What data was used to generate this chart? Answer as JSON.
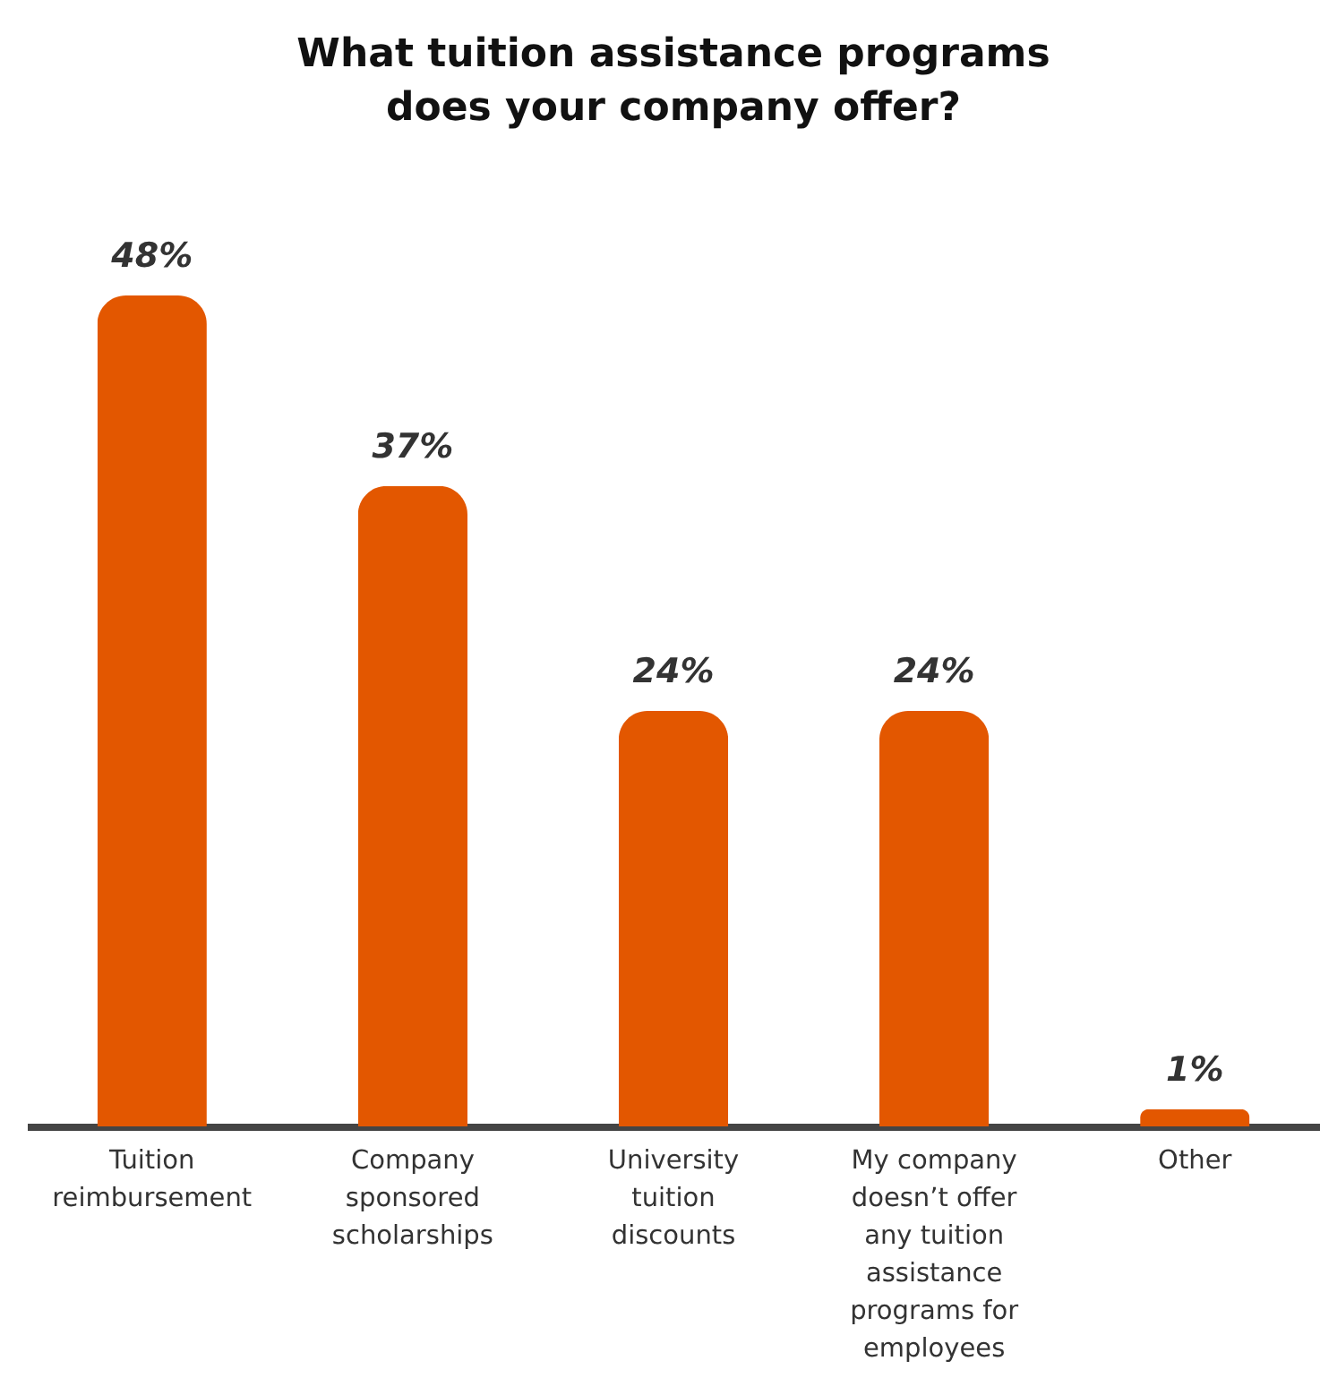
{
  "chart_data": {
    "type": "bar",
    "title": "What tuition assistance programs does your company offer?",
    "categories": [
      "Tuition reimbursement",
      "Company sponsored scholarships",
      "University tuition discounts",
      "My company doesn’t offer any tuition assistance programs for employees",
      "Other"
    ],
    "values": [
      48,
      37,
      24,
      24,
      1
    ],
    "value_labels": [
      "48%",
      "37%",
      "24%",
      "24%",
      "1%"
    ],
    "color": "#e35700"
  }
}
